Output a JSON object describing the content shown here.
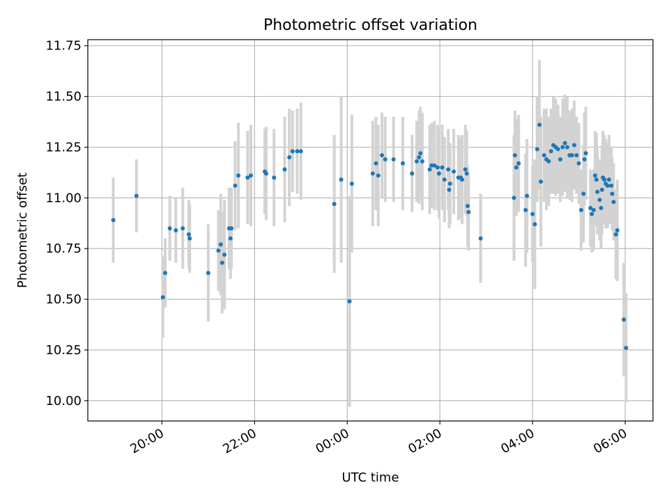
{
  "chart_data": {
    "type": "scatter",
    "title": "Photometric offset variation",
    "xlabel": "UTC time",
    "ylabel": "Photometric offset",
    "x_unit": "hours since 20:00 UTC",
    "xlim": [
      -1.6,
      10.6
    ],
    "ylim": [
      9.9,
      11.78
    ],
    "yticks": [
      10.0,
      10.25,
      10.5,
      10.75,
      11.0,
      11.25,
      11.5,
      11.75
    ],
    "ytick_labels": [
      "10.00",
      "10.25",
      "10.50",
      "10.75",
      "11.00",
      "11.25",
      "11.50",
      "11.75"
    ],
    "xticks": [
      0,
      2,
      4,
      6,
      8,
      10
    ],
    "xtick_labels": [
      "20:00",
      "22:00",
      "00:00",
      "02:00",
      "04:00",
      "06:00"
    ],
    "grid": true,
    "colors": {
      "point": "#1f77b4",
      "errorbar": "#d3d3d3",
      "grid": "#b0b0b0"
    },
    "series": [
      {
        "name": "offset",
        "points": [
          [
            -1.05,
            10.89,
            0.21
          ],
          [
            -0.55,
            11.01,
            0.18
          ],
          [
            0.02,
            10.51,
            0.2
          ],
          [
            0.07,
            10.63,
            0.17
          ],
          [
            0.17,
            10.85,
            0.16
          ],
          [
            0.3,
            10.84,
            0.16
          ],
          [
            0.45,
            10.85,
            0.2
          ],
          [
            0.58,
            10.82,
            0.17
          ],
          [
            0.6,
            10.8,
            0.17
          ],
          [
            1.0,
            10.63,
            0.24
          ],
          [
            1.22,
            10.74,
            0.2
          ],
          [
            1.27,
            10.77,
            0.25
          ],
          [
            1.3,
            10.68,
            0.25
          ],
          [
            1.35,
            10.72,
            0.27
          ],
          [
            1.45,
            10.85,
            0.2
          ],
          [
            1.48,
            10.8,
            0.2
          ],
          [
            1.5,
            10.85,
            0.2
          ],
          [
            1.58,
            11.06,
            0.22
          ],
          [
            1.65,
            11.11,
            0.26
          ],
          [
            1.85,
            11.1,
            0.23
          ],
          [
            1.92,
            11.11,
            0.25
          ],
          [
            2.22,
            11.13,
            0.21
          ],
          [
            2.25,
            11.12,
            0.23
          ],
          [
            2.42,
            11.1,
            0.24
          ],
          [
            2.65,
            11.14,
            0.26
          ],
          [
            2.75,
            11.2,
            0.24
          ],
          [
            2.82,
            11.23,
            0.2
          ],
          [
            2.92,
            11.23,
            0.21
          ],
          [
            3.0,
            11.23,
            0.24
          ],
          [
            3.72,
            10.97,
            0.34
          ],
          [
            3.87,
            11.09,
            0.41
          ],
          [
            4.05,
            10.49,
            0.52
          ],
          [
            4.1,
            11.07,
            0.34
          ],
          [
            4.55,
            11.12,
            0.26
          ],
          [
            4.62,
            11.17,
            0.23
          ],
          [
            4.67,
            11.11,
            0.25
          ],
          [
            4.75,
            11.21,
            0.21
          ],
          [
            4.82,
            11.19,
            0.21
          ],
          [
            5.0,
            11.19,
            0.21
          ],
          [
            5.2,
            11.17,
            0.23
          ],
          [
            5.4,
            11.12,
            0.19
          ],
          [
            5.5,
            11.18,
            0.2
          ],
          [
            5.55,
            11.2,
            0.23
          ],
          [
            5.58,
            11.22,
            0.23
          ],
          [
            5.62,
            11.18,
            0.24
          ],
          [
            5.78,
            11.14,
            0.22
          ],
          [
            5.82,
            11.16,
            0.21
          ],
          [
            5.88,
            11.16,
            0.22
          ],
          [
            5.95,
            11.15,
            0.21
          ],
          [
            5.98,
            11.12,
            0.22
          ],
          [
            6.05,
            11.15,
            0.21
          ],
          [
            6.1,
            11.09,
            0.21
          ],
          [
            6.18,
            11.14,
            0.2
          ],
          [
            6.2,
            11.04,
            0.19
          ],
          [
            6.22,
            11.07,
            0.2
          ],
          [
            6.3,
            11.13,
            0.21
          ],
          [
            6.4,
            11.1,
            0.21
          ],
          [
            6.45,
            11.1,
            0.2
          ],
          [
            6.48,
            11.09,
            0.22
          ],
          [
            6.55,
            11.14,
            0.22
          ],
          [
            6.58,
            11.12,
            0.21
          ],
          [
            6.6,
            10.96,
            0.2
          ],
          [
            6.62,
            10.93,
            0.19
          ],
          [
            6.88,
            10.8,
            0.22
          ],
          [
            7.6,
            11.0,
            0.31
          ],
          [
            7.62,
            11.21,
            0.22
          ],
          [
            7.65,
            11.15,
            0.24
          ],
          [
            7.7,
            11.17,
            0.24
          ],
          [
            7.85,
            10.94,
            0.28
          ],
          [
            7.88,
            11.01,
            0.28
          ],
          [
            8.0,
            10.92,
            0.24
          ],
          [
            8.05,
            10.87,
            0.32
          ],
          [
            8.1,
            11.24,
            0.26
          ],
          [
            8.15,
            11.36,
            0.32
          ],
          [
            8.18,
            11.08,
            0.32
          ],
          [
            8.25,
            11.21,
            0.23
          ],
          [
            8.3,
            11.19,
            0.25
          ],
          [
            8.35,
            11.18,
            0.22
          ],
          [
            8.4,
            11.23,
            0.21
          ],
          [
            8.45,
            11.26,
            0.24
          ],
          [
            8.5,
            11.25,
            0.24
          ],
          [
            8.55,
            11.24,
            0.22
          ],
          [
            8.6,
            11.19,
            0.21
          ],
          [
            8.65,
            11.25,
            0.24
          ],
          [
            8.7,
            11.27,
            0.24
          ],
          [
            8.75,
            11.25,
            0.25
          ],
          [
            8.8,
            11.21,
            0.22
          ],
          [
            8.85,
            11.21,
            0.23
          ],
          [
            8.9,
            11.26,
            0.22
          ],
          [
            8.95,
            11.21,
            0.19
          ],
          [
            9.0,
            11.17,
            0.2
          ],
          [
            9.05,
            10.94,
            0.2
          ],
          [
            9.1,
            11.02,
            0.24
          ],
          [
            9.12,
            11.19,
            0.23
          ],
          [
            9.15,
            11.22,
            0.23
          ],
          [
            9.25,
            10.95,
            0.19
          ],
          [
            9.28,
            10.92,
            0.19
          ],
          [
            9.32,
            10.94,
            0.2
          ],
          [
            9.35,
            11.11,
            0.22
          ],
          [
            9.38,
            11.09,
            0.23
          ],
          [
            9.4,
            11.03,
            0.21
          ],
          [
            9.45,
            10.99,
            0.2
          ],
          [
            9.48,
            10.95,
            0.2
          ],
          [
            9.5,
            11.04,
            0.22
          ],
          [
            9.52,
            11.1,
            0.23
          ],
          [
            9.55,
            11.09,
            0.22
          ],
          [
            9.58,
            11.07,
            0.22
          ],
          [
            9.62,
            11.06,
            0.21
          ],
          [
            9.65,
            11.09,
            0.22
          ],
          [
            9.7,
            11.06,
            0.19
          ],
          [
            9.72,
            11.02,
            0.18
          ],
          [
            9.75,
            10.98,
            0.19
          ],
          [
            9.8,
            10.82,
            0.22
          ],
          [
            9.83,
            10.84,
            0.25
          ],
          [
            9.97,
            10.4,
            0.28
          ],
          [
            10.02,
            10.26,
            0.27
          ]
        ]
      }
    ]
  }
}
